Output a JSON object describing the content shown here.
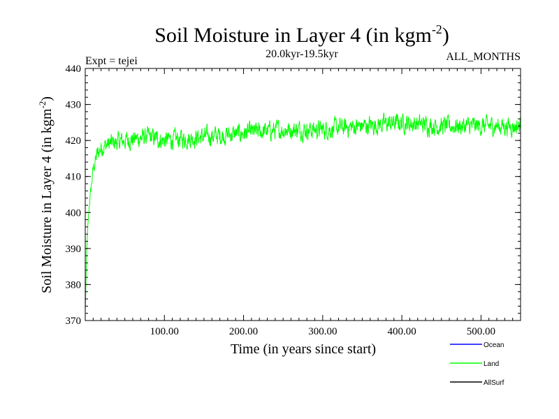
{
  "chart_data": {
    "type": "line",
    "title": "Soil Moisture in Layer 4 (in kgm",
    "title_superscript": "-2",
    "title_suffix": ")",
    "subtitle_left": "Expt = tejei",
    "subtitle_center": "20.0kyr-19.5kyr",
    "subtitle_right": "ALL_MONTHS",
    "xlabel": "Time (in years since start)",
    "ylabel": "Soil Moisture in Layer 4 (in kgm",
    "ylabel_superscript": "-2",
    "ylabel_suffix": ")",
    "xlim": [
      0,
      550
    ],
    "ylim": [
      370,
      440
    ],
    "x_ticks": [
      100,
      200,
      300,
      400,
      500
    ],
    "x_tick_labels": [
      "100.00",
      "200.00",
      "300.00",
      "400.00",
      "500.00"
    ],
    "y_ticks": [
      370,
      380,
      390,
      400,
      410,
      420,
      430,
      440
    ],
    "y_tick_labels": [
      "370",
      "380",
      "390",
      "400",
      "410",
      "420",
      "430",
      "440"
    ],
    "legend": [
      {
        "name": "Ocean",
        "color": "#0000ff"
      },
      {
        "name": "Land",
        "color": "#00ff00"
      },
      {
        "name": "AllSurf",
        "color": "#000000"
      }
    ],
    "series": [
      {
        "name": "Land",
        "color": "#00ff00",
        "trend_x": [
          0,
          2,
          5,
          10,
          15,
          20,
          30,
          50,
          80,
          100,
          150,
          200,
          250,
          300,
          350,
          400,
          450,
          500,
          550
        ],
        "trend_y": [
          372,
          390,
          402,
          412,
          416,
          418,
          419,
          420,
          421,
          420,
          421,
          422,
          423,
          423,
          424,
          425,
          424,
          424,
          424
        ],
        "noise_amplitude": 4.5
      }
    ]
  }
}
